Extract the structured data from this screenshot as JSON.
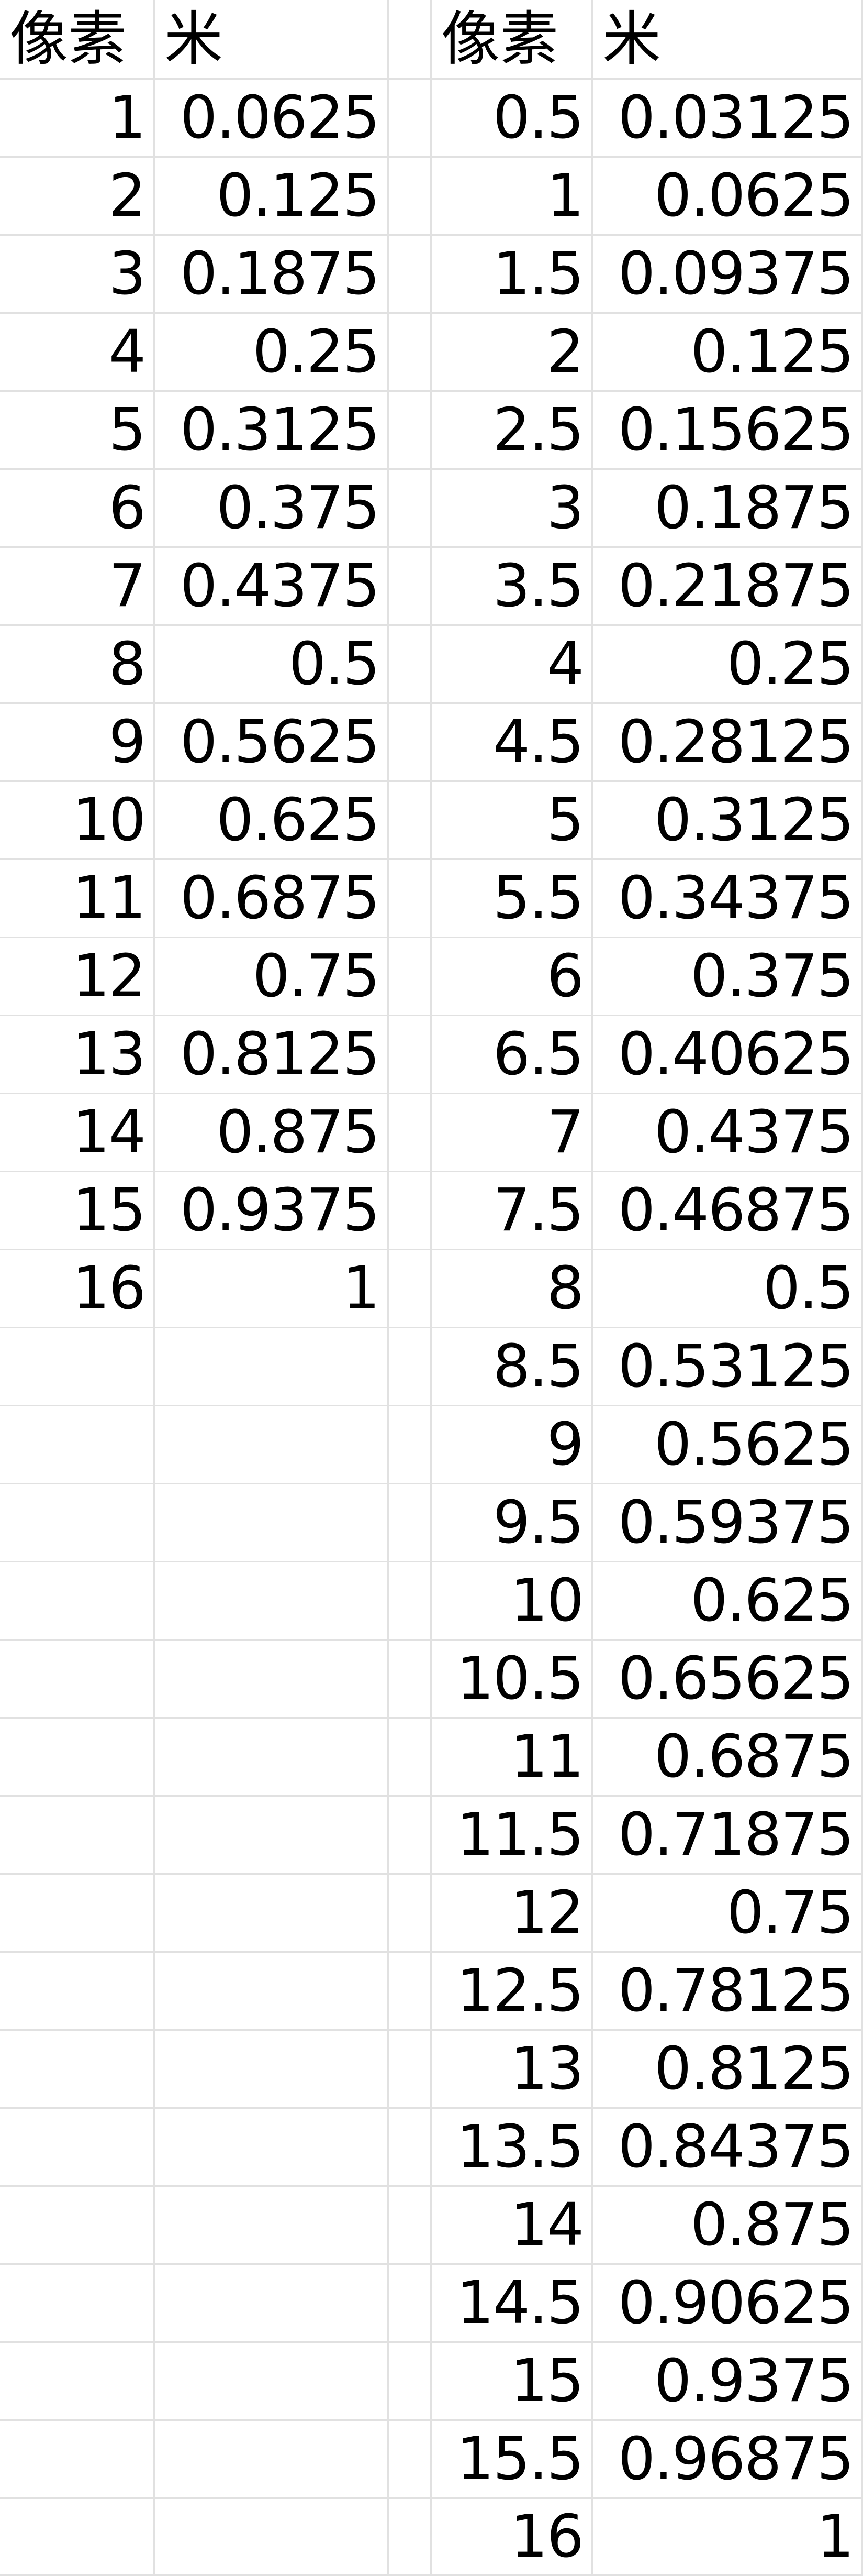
{
  "headers": {
    "left_pixel": "像素",
    "left_meter": "米",
    "right_pixel": "像素",
    "right_meter": "米"
  },
  "left_table": [
    [
      "1",
      "0.0625"
    ],
    [
      "2",
      "0.125"
    ],
    [
      "3",
      "0.1875"
    ],
    [
      "4",
      "0.25"
    ],
    [
      "5",
      "0.3125"
    ],
    [
      "6",
      "0.375"
    ],
    [
      "7",
      "0.4375"
    ],
    [
      "8",
      "0.5"
    ],
    [
      "9",
      "0.5625"
    ],
    [
      "10",
      "0.625"
    ],
    [
      "11",
      "0.6875"
    ],
    [
      "12",
      "0.75"
    ],
    [
      "13",
      "0.8125"
    ],
    [
      "14",
      "0.875"
    ],
    [
      "15",
      "0.9375"
    ],
    [
      "16",
      "1"
    ]
  ],
  "right_table": [
    [
      "0.5",
      "0.03125"
    ],
    [
      "1",
      "0.0625"
    ],
    [
      "1.5",
      "0.09375"
    ],
    [
      "2",
      "0.125"
    ],
    [
      "2.5",
      "0.15625"
    ],
    [
      "3",
      "0.1875"
    ],
    [
      "3.5",
      "0.21875"
    ],
    [
      "4",
      "0.25"
    ],
    [
      "4.5",
      "0.28125"
    ],
    [
      "5",
      "0.3125"
    ],
    [
      "5.5",
      "0.34375"
    ],
    [
      "6",
      "0.375"
    ],
    [
      "6.5",
      "0.40625"
    ],
    [
      "7",
      "0.4375"
    ],
    [
      "7.5",
      "0.46875"
    ],
    [
      "8",
      "0.5"
    ],
    [
      "8.5",
      "0.53125"
    ],
    [
      "9",
      "0.5625"
    ],
    [
      "9.5",
      "0.59375"
    ],
    [
      "10",
      "0.625"
    ],
    [
      "10.5",
      "0.65625"
    ],
    [
      "11",
      "0.6875"
    ],
    [
      "11.5",
      "0.71875"
    ],
    [
      "12",
      "0.75"
    ],
    [
      "12.5",
      "0.78125"
    ],
    [
      "13",
      "0.8125"
    ],
    [
      "13.5",
      "0.84375"
    ],
    [
      "14",
      "0.875"
    ],
    [
      "14.5",
      "0.90625"
    ],
    [
      "15",
      "0.9375"
    ],
    [
      "15.5",
      "0.96875"
    ],
    [
      "16",
      "1"
    ]
  ]
}
